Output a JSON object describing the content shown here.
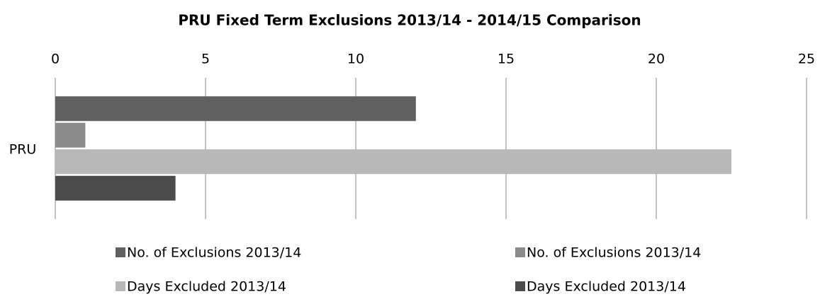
{
  "chart_data": {
    "type": "bar",
    "orientation": "horizontal",
    "title": "PRU Fixed Term Exclusions 2013/14 - 2014/15 Comparison",
    "categories": [
      "PRU"
    ],
    "series": [
      {
        "name": "No. of Exclusions 2013/14",
        "color": "#606060",
        "values": [
          12
        ]
      },
      {
        "name": "No. of Exclusions 2013/14",
        "color": "#8a8a8a",
        "values": [
          1
        ]
      },
      {
        "name": "Days Excluded 2013/14",
        "color": "#b8b8b8",
        "values": [
          22.5
        ]
      },
      {
        "name": "Days Excluded 2013/14",
        "color": "#4b4b4b",
        "values": [
          4
        ]
      }
    ],
    "xlim": [
      0,
      25
    ],
    "xticks": [
      0,
      5,
      10,
      15,
      20,
      25
    ],
    "grid": true
  }
}
